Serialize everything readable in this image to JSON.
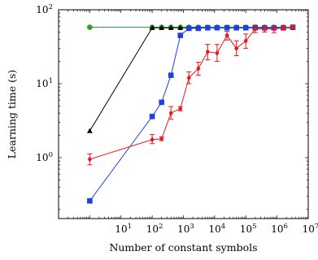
{
  "chart_data": {
    "type": "line",
    "xlabel": "Number of constant symbols",
    "ylabel": "Learning time (s)",
    "x_scale": "log",
    "y_scale": "log",
    "xlim": [
      0.1,
      10000000
    ],
    "ylim": [
      0.15,
      100
    ],
    "x_ticks": [
      {
        "value": 10,
        "base": "10",
        "exp": "1"
      },
      {
        "value": 100,
        "base": "10",
        "exp": "2"
      },
      {
        "value": 1000,
        "base": "10",
        "exp": "3"
      },
      {
        "value": 10000,
        "base": "10",
        "exp": "4"
      },
      {
        "value": 100000,
        "base": "10",
        "exp": "5"
      },
      {
        "value": 1000000,
        "base": "10",
        "exp": "6"
      },
      {
        "value": 10000000,
        "base": "10",
        "exp": "7"
      }
    ],
    "y_ticks": [
      {
        "value": 1,
        "base": "10",
        "exp": "0"
      },
      {
        "value": 10,
        "base": "10",
        "exp": "1"
      },
      {
        "value": 100,
        "base": "10",
        "exp": "2"
      }
    ],
    "grid": false,
    "series": [
      {
        "color": "#2ca02c",
        "marker": "circle",
        "points": [
          {
            "x": 1,
            "y": 58
          },
          {
            "x": 100,
            "y": 58
          },
          {
            "x": 200,
            "y": 58
          },
          {
            "x": 400,
            "y": 58
          },
          {
            "x": 800,
            "y": 58
          },
          {
            "x": 1500,
            "y": 58
          },
          {
            "x": 3000,
            "y": 58
          },
          {
            "x": 6000,
            "y": 58
          },
          {
            "x": 12000,
            "y": 58
          },
          {
            "x": 25000,
            "y": 58
          },
          {
            "x": 50000,
            "y": 58
          },
          {
            "x": 100000,
            "y": 58
          },
          {
            "x": 200000,
            "y": 58
          },
          {
            "x": 400000,
            "y": 58
          },
          {
            "x": 800000,
            "y": 58
          },
          {
            "x": 1600000,
            "y": 58
          },
          {
            "x": 3200000,
            "y": 58
          }
        ]
      },
      {
        "color": "#000000",
        "marker": "triangle",
        "points": [
          {
            "x": 1,
            "y": 2.3
          },
          {
            "x": 100,
            "y": 57
          },
          {
            "x": 200,
            "y": 57
          },
          {
            "x": 400,
            "y": 57
          },
          {
            "x": 800,
            "y": 57
          },
          {
            "x": 1500,
            "y": 57
          },
          {
            "x": 3000,
            "y": 57
          },
          {
            "x": 6000,
            "y": 57
          },
          {
            "x": 12000,
            "y": 57
          },
          {
            "x": 25000,
            "y": 57
          },
          {
            "x": 50000,
            "y": 57
          },
          {
            "x": 100000,
            "y": 57
          },
          {
            "x": 200000,
            "y": 57
          },
          {
            "x": 400000,
            "y": 57
          },
          {
            "x": 800000,
            "y": 57
          },
          {
            "x": 1600000,
            "y": 57
          },
          {
            "x": 3200000,
            "y": 57
          }
        ]
      },
      {
        "color": "#1f3fe0",
        "marker": "square",
        "points": [
          {
            "x": 1,
            "y": 0.26
          },
          {
            "x": 100,
            "y": 3.6
          },
          {
            "x": 200,
            "y": 5.6
          },
          {
            "x": 400,
            "y": 13
          },
          {
            "x": 800,
            "y": 45
          },
          {
            "x": 1500,
            "y": 56
          },
          {
            "x": 3000,
            "y": 56
          },
          {
            "x": 6000,
            "y": 57
          },
          {
            "x": 12000,
            "y": 57
          },
          {
            "x": 25000,
            "y": 57
          },
          {
            "x": 50000,
            "y": 57
          },
          {
            "x": 100000,
            "y": 57
          },
          {
            "x": 200000,
            "y": 57
          },
          {
            "x": 400000,
            "y": 57
          },
          {
            "x": 800000,
            "y": 57
          },
          {
            "x": 1600000,
            "y": 57
          },
          {
            "x": 3200000,
            "y": 58
          }
        ]
      },
      {
        "color": "#e8161b",
        "marker": "diamond",
        "points": [
          {
            "x": 1,
            "y": 0.95,
            "lo": 0.8,
            "hi": 1.12
          },
          {
            "x": 100,
            "y": 1.75,
            "lo": 1.55,
            "hi": 2.05
          },
          {
            "x": 200,
            "y": 1.8,
            "lo": 1.7,
            "hi": 1.9
          },
          {
            "x": 400,
            "y": 4.0,
            "lo": 3.3,
            "hi": 4.9
          },
          {
            "x": 800,
            "y": 4.6,
            "lo": 4.3,
            "hi": 4.9
          },
          {
            "x": 1500,
            "y": 12,
            "lo": 10,
            "hi": 14.5
          },
          {
            "x": 3000,
            "y": 16,
            "lo": 13,
            "hi": 19.5
          },
          {
            "x": 6000,
            "y": 27,
            "lo": 21,
            "hi": 34
          },
          {
            "x": 12000,
            "y": 26,
            "lo": 20,
            "hi": 34
          },
          {
            "x": 25000,
            "y": 45,
            "lo": 39,
            "hi": 51
          },
          {
            "x": 50000,
            "y": 30,
            "lo": 24,
            "hi": 38
          },
          {
            "x": 100000,
            "y": 38,
            "lo": 30,
            "hi": 47
          },
          {
            "x": 200000,
            "y": 55,
            "lo": 49,
            "hi": 62
          },
          {
            "x": 400000,
            "y": 55,
            "lo": 50,
            "hi": 60
          },
          {
            "x": 800000,
            "y": 55,
            "lo": 49,
            "hi": 61
          },
          {
            "x": 1600000,
            "y": 57,
            "lo": 53,
            "hi": 61
          },
          {
            "x": 3200000,
            "y": 58,
            "lo": 55,
            "hi": 61
          }
        ]
      }
    ]
  }
}
